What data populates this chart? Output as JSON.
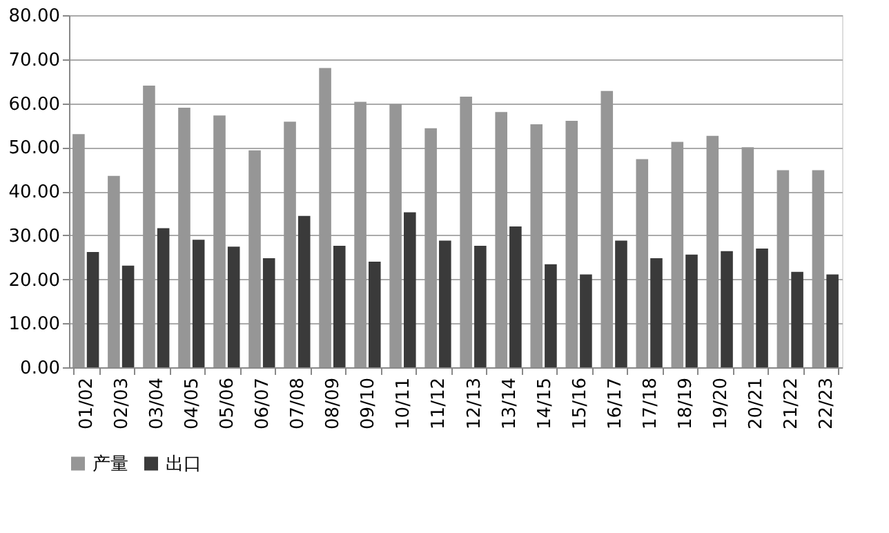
{
  "chart_data": {
    "type": "bar",
    "categories": [
      "01/02",
      "02/03",
      "03/04",
      "04/05",
      "05/06",
      "06/07",
      "07/08",
      "08/09",
      "09/10",
      "10/11",
      "11/12",
      "12/13",
      "13/14",
      "14/15",
      "15/16",
      "16/17",
      "17/18",
      "18/19",
      "19/20",
      "20/21",
      "21/22",
      "22/23"
    ],
    "series": [
      {
        "name": "产量",
        "color": "#969696",
        "values": [
          53.0,
          43.5,
          64.0,
          59.0,
          57.2,
          49.3,
          55.8,
          68.0,
          60.3,
          59.8,
          54.3,
          61.5,
          58.0,
          55.2,
          56.0,
          62.8,
          47.3,
          51.2,
          52.6,
          50.0,
          44.8,
          44.8
        ]
      },
      {
        "name": "出口",
        "color": "#3a3a3a",
        "values": [
          26.2,
          23.1,
          31.6,
          29.0,
          27.4,
          24.8,
          34.4,
          27.6,
          24.0,
          35.2,
          28.8,
          27.6,
          32.0,
          23.4,
          21.1,
          28.8,
          24.8,
          25.6,
          26.4,
          27.0,
          21.7,
          21.1
        ]
      }
    ],
    "ylim": [
      0,
      80
    ],
    "yticks": [
      {
        "value": 0,
        "label": "0.00"
      },
      {
        "value": 10,
        "label": "10.00"
      },
      {
        "value": 20,
        "label": "20.00"
      },
      {
        "value": 30,
        "label": "30.00"
      },
      {
        "value": 40,
        "label": "40.00"
      },
      {
        "value": 50,
        "label": "50.00"
      },
      {
        "value": 60,
        "label": "60.00"
      },
      {
        "value": 70,
        "label": "70.00"
      },
      {
        "value": 80,
        "label": "80.00"
      }
    ],
    "grid": "y",
    "legend": "bottom"
  }
}
